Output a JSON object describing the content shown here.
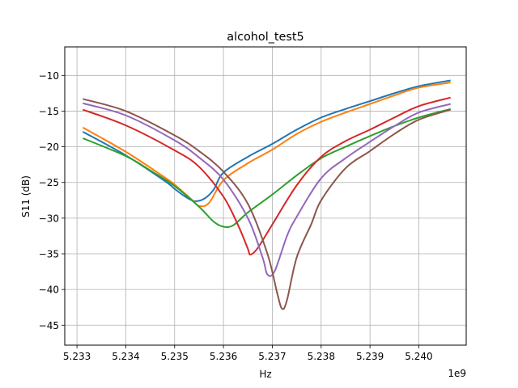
{
  "chart_data": {
    "type": "line",
    "title": "alcohol_test5",
    "xlabel": "Hz",
    "ylabel": "S11 (dB)",
    "x_offset_label": "1e9",
    "xlim": [
      5.23275,
      5.24097
    ],
    "ylim": [
      -47.8,
      -6.0
    ],
    "xticks": [
      5.233,
      5.234,
      5.235,
      5.236,
      5.237,
      5.238,
      5.239,
      5.24
    ],
    "xtick_labels": [
      "5.233",
      "5.234",
      "5.235",
      "5.236",
      "5.237",
      "5.238",
      "5.239",
      "5.240"
    ],
    "yticks": [
      -10,
      -15,
      -20,
      -25,
      -30,
      -35,
      -40,
      -45
    ],
    "ytick_labels": [
      "−10",
      "−15",
      "−20",
      "−25",
      "−30",
      "−35",
      "−40",
      "−45"
    ],
    "grid": true,
    "legend": null,
    "series": [
      {
        "name": "series-1",
        "color": "#1f77b4",
        "points": [
          [
            5.23312,
            -17.9
          ],
          [
            5.234,
            -21.2
          ],
          [
            5.2348,
            -24.8
          ],
          [
            5.235,
            -25.9
          ],
          [
            5.2352,
            -26.9
          ],
          [
            5.2354,
            -27.6
          ],
          [
            5.2356,
            -27.3
          ],
          [
            5.2358,
            -26.0
          ],
          [
            5.236,
            -23.6
          ],
          [
            5.2365,
            -21.4
          ],
          [
            5.237,
            -19.6
          ],
          [
            5.2375,
            -17.6
          ],
          [
            5.238,
            -15.9
          ],
          [
            5.2385,
            -14.7
          ],
          [
            5.239,
            -13.6
          ],
          [
            5.2395,
            -12.5
          ],
          [
            5.24,
            -11.5
          ],
          [
            5.24065,
            -10.7
          ]
        ]
      },
      {
        "name": "series-2",
        "color": "#ff7f0e",
        "points": [
          [
            5.23312,
            -17.3
          ],
          [
            5.234,
            -20.7
          ],
          [
            5.2348,
            -24.3
          ],
          [
            5.235,
            -25.3
          ],
          [
            5.2352,
            -26.5
          ],
          [
            5.2354,
            -27.7
          ],
          [
            5.2355,
            -28.3
          ],
          [
            5.2357,
            -27.9
          ],
          [
            5.236,
            -24.7
          ],
          [
            5.2365,
            -22.3
          ],
          [
            5.237,
            -20.4
          ],
          [
            5.2375,
            -18.2
          ],
          [
            5.238,
            -16.5
          ],
          [
            5.2385,
            -15.2
          ],
          [
            5.239,
            -14.0
          ],
          [
            5.2395,
            -12.8
          ],
          [
            5.24,
            -11.7
          ],
          [
            5.24065,
            -11.0
          ]
        ]
      },
      {
        "name": "series-3",
        "color": "#2ca02c",
        "points": [
          [
            5.23312,
            -18.8
          ],
          [
            5.234,
            -21.3
          ],
          [
            5.2345,
            -23.3
          ],
          [
            5.235,
            -25.5
          ],
          [
            5.2355,
            -28.4
          ],
          [
            5.2358,
            -30.5
          ],
          [
            5.236,
            -31.2
          ],
          [
            5.2362,
            -31.0
          ],
          [
            5.2365,
            -29.2
          ],
          [
            5.237,
            -26.7
          ],
          [
            5.2375,
            -24.0
          ],
          [
            5.238,
            -21.6
          ],
          [
            5.2385,
            -20.0
          ],
          [
            5.239,
            -18.5
          ],
          [
            5.2395,
            -17.1
          ],
          [
            5.24,
            -15.9
          ],
          [
            5.24065,
            -14.7
          ]
        ]
      },
      {
        "name": "series-4",
        "color": "#d62728",
        "points": [
          [
            5.23312,
            -14.8
          ],
          [
            5.234,
            -17.0
          ],
          [
            5.235,
            -20.5
          ],
          [
            5.2355,
            -22.8
          ],
          [
            5.236,
            -27.0
          ],
          [
            5.2363,
            -31.0
          ],
          [
            5.2365,
            -34.3
          ],
          [
            5.23655,
            -35.1
          ],
          [
            5.2367,
            -34.2
          ],
          [
            5.237,
            -30.9
          ],
          [
            5.2375,
            -25.4
          ],
          [
            5.238,
            -21.4
          ],
          [
            5.2385,
            -19.2
          ],
          [
            5.239,
            -17.6
          ],
          [
            5.2395,
            -15.9
          ],
          [
            5.24,
            -14.3
          ],
          [
            5.24065,
            -13.1
          ]
        ]
      },
      {
        "name": "series-5",
        "color": "#9467bd",
        "points": [
          [
            5.23312,
            -13.9
          ],
          [
            5.234,
            -15.6
          ],
          [
            5.235,
            -19.1
          ],
          [
            5.2355,
            -21.5
          ],
          [
            5.236,
            -24.6
          ],
          [
            5.2365,
            -30.0
          ],
          [
            5.2368,
            -35.5
          ],
          [
            5.2369,
            -37.9
          ],
          [
            5.23705,
            -37.4
          ],
          [
            5.2373,
            -32.5
          ],
          [
            5.2375,
            -29.8
          ],
          [
            5.238,
            -24.4
          ],
          [
            5.2385,
            -21.6
          ],
          [
            5.239,
            -19.3
          ],
          [
            5.2395,
            -17.1
          ],
          [
            5.24,
            -15.2
          ],
          [
            5.24065,
            -14.0
          ]
        ]
      },
      {
        "name": "series-6",
        "color": "#8c564b",
        "points": [
          [
            5.23312,
            -13.3
          ],
          [
            5.234,
            -15.0
          ],
          [
            5.235,
            -18.4
          ],
          [
            5.2355,
            -20.6
          ],
          [
            5.236,
            -23.5
          ],
          [
            5.2365,
            -28.0
          ],
          [
            5.2369,
            -35.0
          ],
          [
            5.2371,
            -40.5
          ],
          [
            5.2372,
            -42.7
          ],
          [
            5.2373,
            -41.5
          ],
          [
            5.2375,
            -35.5
          ],
          [
            5.2378,
            -30.8
          ],
          [
            5.238,
            -27.5
          ],
          [
            5.2385,
            -23.0
          ],
          [
            5.239,
            -20.6
          ],
          [
            5.2395,
            -18.2
          ],
          [
            5.24,
            -16.2
          ],
          [
            5.24065,
            -14.8
          ]
        ]
      }
    ]
  }
}
